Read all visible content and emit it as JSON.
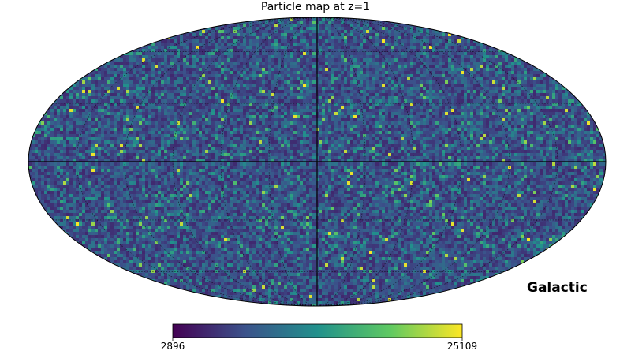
{
  "title": "Particle map at z=1",
  "coordinate_system_label": "Galactic",
  "projection": "mollweide",
  "graticule": true,
  "colormap": {
    "name": "viridis",
    "stops": [
      "#440154",
      "#3b528b",
      "#21918c",
      "#5ec962",
      "#fde725"
    ]
  },
  "colorbar": {
    "min_label": "2896",
    "max_label": "25109",
    "min": 2896,
    "max": 25109
  }
}
